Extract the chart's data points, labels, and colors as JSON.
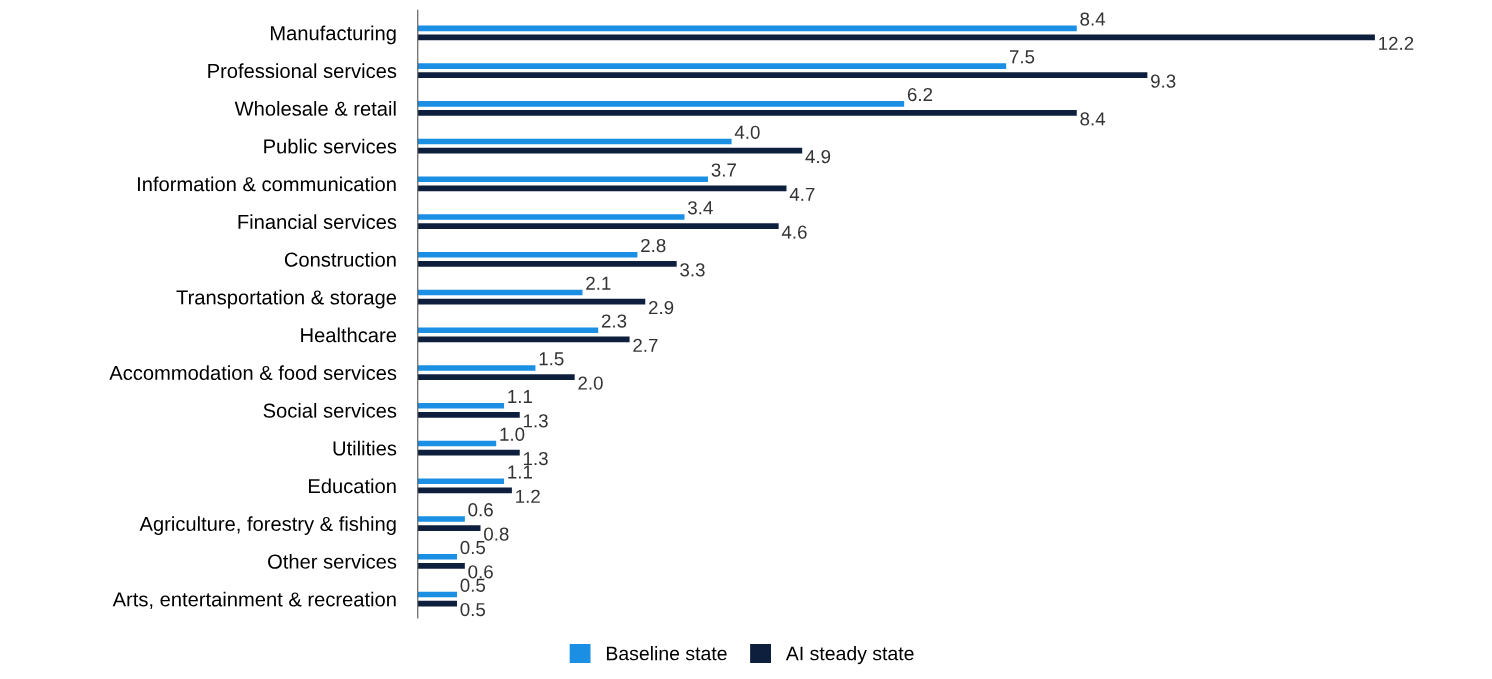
{
  "chart_data": {
    "type": "bar",
    "orientation": "horizontal",
    "categories": [
      "Manufacturing",
      "Professional services",
      "Wholesale & retail",
      "Public services",
      "Information & communication",
      "Financial services",
      "Construction",
      "Transportation & storage",
      "Healthcare",
      "Accommodation & food services",
      "Social services",
      "Utilities",
      "Education",
      "Agriculture, forestry & fishing",
      "Other services",
      "Arts, entertainment & recreation"
    ],
    "series": [
      {
        "name": "Baseline state",
        "color": "#1a8fe3",
        "values": [
          8.4,
          7.5,
          6.2,
          4.0,
          3.7,
          3.4,
          2.8,
          2.1,
          2.3,
          1.5,
          1.1,
          1.0,
          1.1,
          0.6,
          0.5,
          0.5
        ],
        "value_labels": [
          "8.4",
          "7.5",
          "6.2",
          "4.0",
          "3.7",
          "3.4",
          "2.8",
          "2.1",
          "2.3",
          "1.5",
          "1.1",
          "1.0",
          "1.1",
          "0.6",
          "0.5",
          "0.5"
        ]
      },
      {
        "name": "AI steady state",
        "color": "#0e1f3d",
        "values": [
          12.2,
          9.3,
          8.4,
          4.9,
          4.7,
          4.6,
          3.3,
          2.9,
          2.7,
          2.0,
          1.3,
          1.3,
          1.2,
          0.8,
          0.6,
          0.5
        ],
        "value_labels": [
          "12.2",
          "9.3",
          "8.4",
          "4.9",
          "4.7",
          "4.6",
          "3.3",
          "2.9",
          "2.7",
          "2.0",
          "1.3",
          "1.3",
          "1.2",
          "0.8",
          "0.6",
          "0.5"
        ]
      }
    ],
    "data_labels": true,
    "legend": "bottom",
    "grid": false
  }
}
